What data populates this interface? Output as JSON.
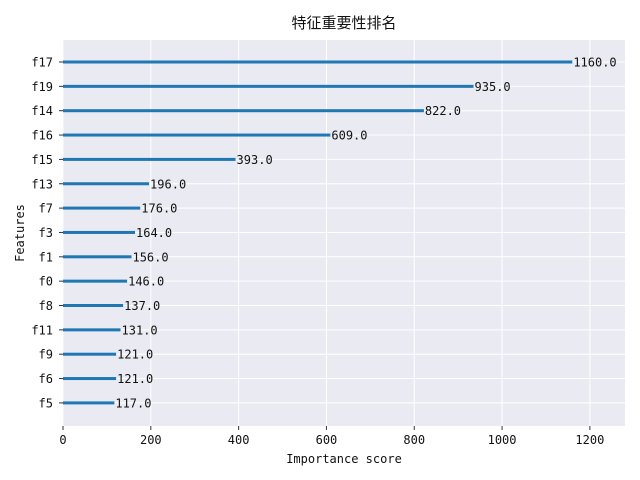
{
  "chart_data": {
    "type": "bar",
    "orientation": "horizontal",
    "title": "特征重要性排名",
    "xlabel": "Importance score",
    "ylabel": "Features",
    "xlim": [
      0,
      1280
    ],
    "xticks": [
      0,
      200,
      400,
      600,
      800,
      1000,
      1200
    ],
    "grid": true,
    "colors": {
      "bar": "#1f77b4",
      "background": "#eaeaf2",
      "grid": "#ffffff"
    },
    "categories": [
      "f17",
      "f19",
      "f14",
      "f16",
      "f15",
      "f13",
      "f7",
      "f3",
      "f1",
      "f0",
      "f8",
      "f11",
      "f9",
      "f6",
      "f5"
    ],
    "values": [
      1160,
      935,
      822,
      609,
      393,
      196,
      176,
      164,
      156,
      146,
      137,
      131,
      121,
      121,
      117
    ],
    "data_labels": [
      "1160.0",
      "935.0",
      "822.0",
      "609.0",
      "393.0",
      "196.0",
      "176.0",
      "164.0",
      "156.0",
      "146.0",
      "137.0",
      "131.0",
      "121.0",
      "121.0",
      "117.0"
    ]
  }
}
